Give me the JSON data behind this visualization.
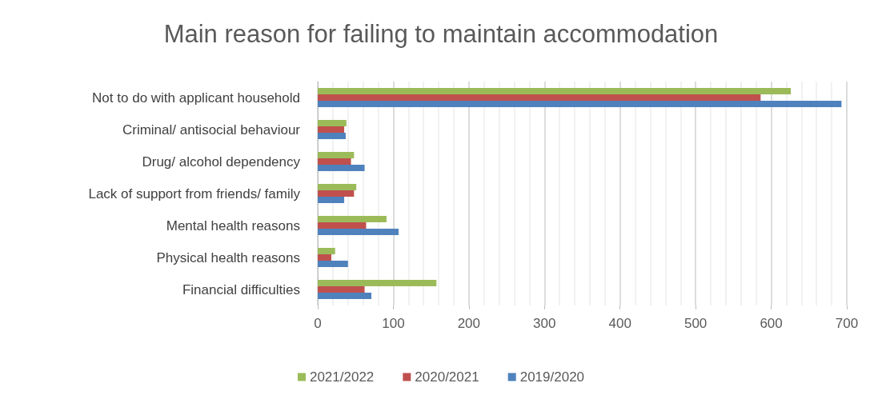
{
  "chart_data": {
    "type": "bar",
    "orientation": "horizontal",
    "title": "Main reason for failing to maintain accommodation",
    "categories": [
      "Not to do with applicant household",
      "Criminal/ antisocial behaviour",
      "Drug/ alcohol dependency",
      "Lack of support from friends/ family",
      "Mental health reasons",
      "Physical health reasons",
      "Financial difficulties"
    ],
    "series": [
      {
        "name": "2021/2022",
        "color": "#9bbb59",
        "values": [
          626,
          38,
          48,
          51,
          91,
          23,
          157
        ]
      },
      {
        "name": "2020/2021",
        "color": "#c0504d",
        "values": [
          586,
          35,
          44,
          48,
          64,
          18,
          62
        ]
      },
      {
        "name": "2019/2020",
        "color": "#4f81bd",
        "values": [
          693,
          37,
          62,
          35,
          107,
          40,
          71
        ]
      }
    ],
    "xlim": [
      0,
      700
    ],
    "xticks": [
      0,
      100,
      200,
      300,
      400,
      500,
      600,
      700
    ],
    "grid": "x",
    "legend": "bottom"
  }
}
